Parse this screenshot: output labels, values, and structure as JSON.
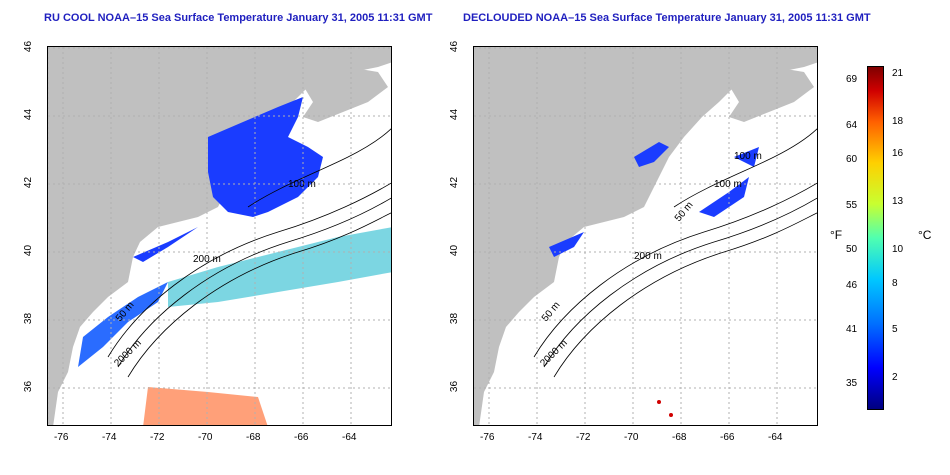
{
  "panels": [
    {
      "title": "RU COOL NOAA–15 Sea Surface Temperature January 31, 2005 11:31 GMT",
      "contour_labels": [
        "100 m",
        "200 m",
        "50 m",
        "2000 m"
      ]
    },
    {
      "title": "DECLOUDED NOAA–15 Sea Surface Temperature January 31, 2005 11:31 GMT",
      "contour_labels": [
        "100 m",
        "100 m",
        "200 m",
        "50 m",
        "2000 m",
        "50 m"
      ]
    }
  ],
  "axes": {
    "x_ticks": [
      "-76",
      "-74",
      "-72",
      "-70",
      "-68",
      "-66",
      "-64"
    ],
    "y_ticks": [
      "46",
      "44",
      "42",
      "40",
      "38",
      "36"
    ]
  },
  "colorbar": {
    "fahrenheit_label": "°F",
    "celsius_label": "°C",
    "fahrenheit_ticks": [
      "69",
      "64",
      "60",
      "55",
      "50",
      "46",
      "41",
      "35"
    ],
    "celsius_ticks": [
      "21",
      "18",
      "16",
      "13",
      "10",
      "8",
      "5",
      "2"
    ]
  },
  "colors": {
    "land": "#c0c0c0",
    "title": "#1f1fbf",
    "cold_water": "#1a3cff",
    "contour": "#000000",
    "grid": "#b0b0b0"
  }
}
